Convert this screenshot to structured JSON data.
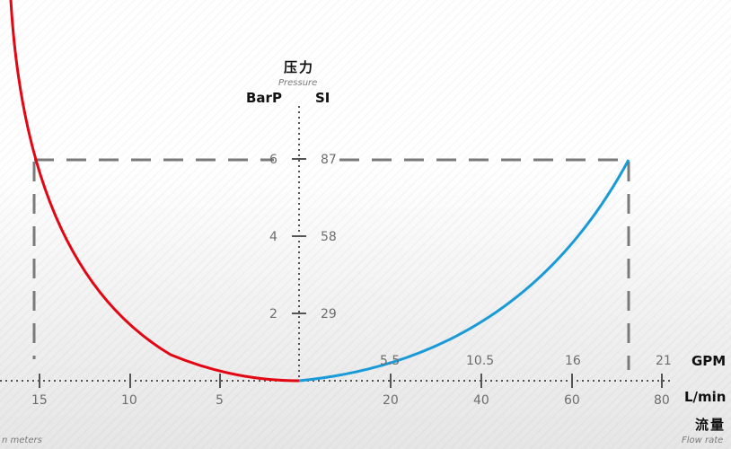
{
  "pressure_axis": {
    "title_cn": "压力",
    "title_en": "Pressure",
    "left_unit": "BarP",
    "right_unit": "SI",
    "ticks": [
      {
        "bar": "2",
        "psi": "29"
      },
      {
        "bar": "4",
        "psi": "58"
      },
      {
        "bar": "6",
        "psi": "87"
      }
    ]
  },
  "flow_axis": {
    "gpm_unit": "GPM",
    "lmin_unit": "L/min",
    "title_cn": "流量",
    "title_en": "Flow rate",
    "gpm_ticks": [
      "5.5",
      "10.5",
      "16",
      "21"
    ],
    "lmin_ticks": [
      "20",
      "40",
      "60",
      "80"
    ]
  },
  "length_axis": {
    "ticks": [
      "15",
      "10",
      "5"
    ],
    "title_en": "n meters"
  },
  "colors": {
    "length_curve": "#e30613",
    "flow_curve": "#1a9bd7",
    "guide": "#7a7a7a"
  },
  "chart_data": {
    "type": "line",
    "series": [
      {
        "x_unit": "m",
        "points": [
          [
            15,
            6
          ],
          [
            0,
            0
          ]
        ]
      },
      {
        "x_unit": "L/min",
        "points": [
          [
            0,
            0
          ],
          [
            73,
            6
          ]
        ]
      }
    ]
  }
}
